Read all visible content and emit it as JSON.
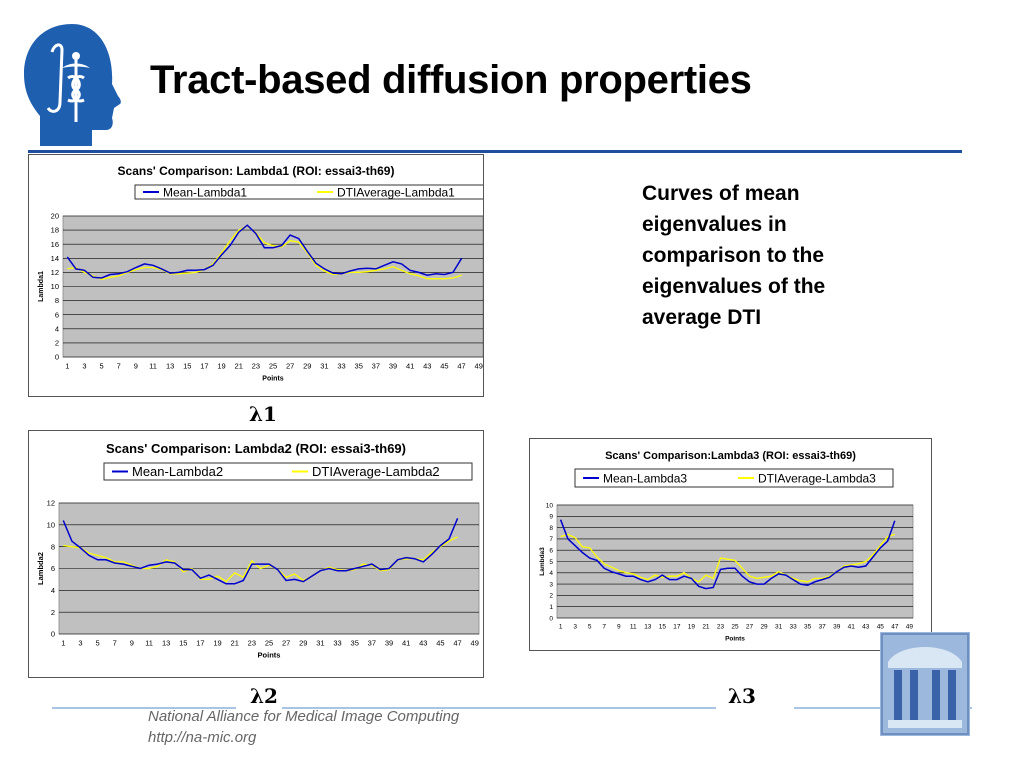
{
  "slide": {
    "title": "Tract-based diffusion properties",
    "caption": "Curves of mean eigenvalues in comparison to the eigenvalues of the average DTI",
    "labels": {
      "l1": "λ1",
      "l2": "λ2",
      "l3": "λ3"
    },
    "footer": {
      "org": "National Alliance for Medical Image Computing",
      "url": "http://na-mic.org"
    },
    "colors": {
      "accent": "#1f4e9e",
      "plot_bg": "#c0c0c0",
      "mean_line": "#0000cc",
      "avg_line": "#ffff00"
    }
  },
  "chart_data": [
    {
      "type": "line",
      "title": "Scans' Comparison:  Lambda1 (ROI: essai3-th69)",
      "xlabel": "Points",
      "ylabel": "Lambda1",
      "ylim": [
        0,
        20
      ],
      "yticks": [
        0,
        2,
        4,
        6,
        8,
        10,
        12,
        14,
        16,
        18,
        20
      ],
      "xticks": [
        1,
        3,
        5,
        7,
        9,
        11,
        13,
        15,
        17,
        19,
        21,
        23,
        25,
        27,
        29,
        31,
        33,
        35,
        37,
        39,
        41,
        43,
        45,
        47,
        49
      ],
      "grid": true,
      "legend": "top",
      "series": [
        {
          "name": "Mean-Lambda1",
          "color": "#0000cc",
          "values": [
            14.2,
            12.5,
            12.3,
            11.3,
            11.2,
            11.7,
            11.8,
            12.1,
            12.7,
            13.2,
            13.0,
            12.5,
            11.9,
            12.0,
            12.3,
            12.3,
            12.4,
            13.0,
            14.5,
            15.8,
            17.7,
            18.7,
            17.5,
            15.5,
            15.5,
            15.8,
            17.3,
            16.8,
            15.0,
            13.3,
            12.5,
            11.9,
            11.8,
            12.2,
            12.5,
            12.6,
            12.5,
            13.0,
            13.5,
            13.2,
            12.3,
            12.0,
            11.6,
            11.8,
            11.7,
            12.0,
            14.0
          ]
        },
        {
          "name": "DTIAverage-Lambda1",
          "color": "#ffff00",
          "values": [
            12.5,
            12.7,
            12.0,
            11.5,
            11.0,
            11.3,
            11.5,
            12.0,
            12.4,
            12.7,
            12.7,
            12.4,
            11.8,
            11.8,
            11.9,
            12.0,
            12.4,
            13.2,
            14.8,
            16.5,
            18.0,
            18.6,
            17.6,
            16.2,
            15.8,
            15.6,
            16.5,
            16.3,
            14.8,
            13.0,
            12.2,
            11.7,
            11.8,
            12.0,
            12.0,
            12.1,
            12.3,
            12.5,
            12.8,
            12.3,
            11.8,
            11.5,
            11.1,
            11.1,
            11.1,
            11.2,
            11.6
          ]
        }
      ]
    },
    {
      "type": "line",
      "title": "Scans' Comparison: Lambda2 (ROI: essai3-th69)",
      "xlabel": "Points",
      "ylabel": "Lambda2",
      "ylim": [
        0,
        12
      ],
      "yticks": [
        0,
        2,
        4,
        6,
        8,
        10,
        12
      ],
      "xticks": [
        1,
        3,
        5,
        7,
        9,
        11,
        13,
        15,
        17,
        19,
        21,
        23,
        25,
        27,
        29,
        31,
        33,
        35,
        37,
        39,
        41,
        43,
        45,
        47,
        49
      ],
      "grid": true,
      "legend": "top",
      "series": [
        {
          "name": "Mean-Lambda2",
          "color": "#0000cc",
          "values": [
            10.4,
            8.5,
            7.9,
            7.2,
            6.8,
            6.8,
            6.5,
            6.4,
            6.2,
            6.0,
            6.3,
            6.4,
            6.6,
            6.5,
            5.9,
            5.9,
            5.1,
            5.4,
            5.0,
            4.6,
            4.6,
            4.9,
            6.4,
            6.4,
            6.4,
            5.9,
            4.9,
            5.0,
            4.8,
            5.3,
            5.8,
            6.0,
            5.8,
            5.8,
            6.0,
            6.2,
            6.4,
            5.9,
            6.0,
            6.8,
            7.0,
            6.9,
            6.6,
            7.3,
            8.1,
            8.7,
            10.6
          ]
        },
        {
          "name": "DTIAverage-Lambda2",
          "color": "#ffff00",
          "values": [
            8.1,
            8.0,
            7.9,
            7.4,
            7.2,
            7.0,
            6.6,
            6.6,
            6.3,
            6.0,
            6.0,
            6.2,
            6.8,
            6.6,
            5.7,
            6.0,
            5.0,
            5.0,
            5.3,
            4.8,
            5.6,
            5.2,
            6.7,
            6.0,
            6.3,
            5.9,
            5.2,
            5.5,
            4.9,
            5.3,
            5.8,
            6.1,
            5.9,
            5.8,
            5.9,
            6.4,
            6.3,
            5.8,
            5.9,
            6.8,
            6.9,
            6.9,
            6.8,
            7.5,
            8.0,
            8.5,
            8.9
          ]
        }
      ]
    },
    {
      "type": "line",
      "title": "Scans' Comparison:Lambda3 (ROI: essai3-th69)",
      "xlabel": "Points",
      "ylabel": "Lambda3",
      "ylim": [
        0,
        10
      ],
      "yticks": [
        0,
        1,
        2,
        3,
        4,
        5,
        6,
        7,
        8,
        9,
        10
      ],
      "xticks": [
        1,
        3,
        5,
        7,
        9,
        11,
        13,
        15,
        17,
        19,
        21,
        23,
        25,
        27,
        29,
        31,
        33,
        35,
        37,
        39,
        41,
        43,
        45,
        47,
        49
      ],
      "grid": true,
      "legend": "top",
      "series": [
        {
          "name": "Mean-Lambda3",
          "color": "#0000cc",
          "values": [
            8.7,
            7.0,
            6.4,
            5.8,
            5.3,
            5.1,
            4.4,
            4.1,
            3.9,
            3.7,
            3.7,
            3.4,
            3.2,
            3.4,
            3.8,
            3.4,
            3.4,
            3.7,
            3.5,
            2.8,
            2.6,
            2.7,
            4.3,
            4.4,
            4.4,
            3.7,
            3.2,
            3.0,
            3.0,
            3.5,
            3.9,
            3.8,
            3.4,
            3.0,
            2.9,
            3.2,
            3.4,
            3.6,
            4.1,
            4.5,
            4.6,
            4.5,
            4.6,
            5.4,
            6.2,
            6.8,
            8.6
          ]
        },
        {
          "name": "DTIAverage-Lambda3",
          "color": "#ffff00",
          "values": [
            7.2,
            7.4,
            7.1,
            6.3,
            6.2,
            5.4,
            4.8,
            4.5,
            4.2,
            4.0,
            3.9,
            3.6,
            3.4,
            3.8,
            3.6,
            3.7,
            3.7,
            4.0,
            3.5,
            3.2,
            3.8,
            3.5,
            5.3,
            5.2,
            5.1,
            4.4,
            3.7,
            3.5,
            3.6,
            3.7,
            4.1,
            3.8,
            3.5,
            3.3,
            3.2,
            3.5,
            3.5,
            3.7,
            4.1,
            4.6,
            4.7,
            4.8,
            5.0,
            5.6,
            6.4,
            7.2,
            7.4
          ]
        }
      ]
    }
  ]
}
